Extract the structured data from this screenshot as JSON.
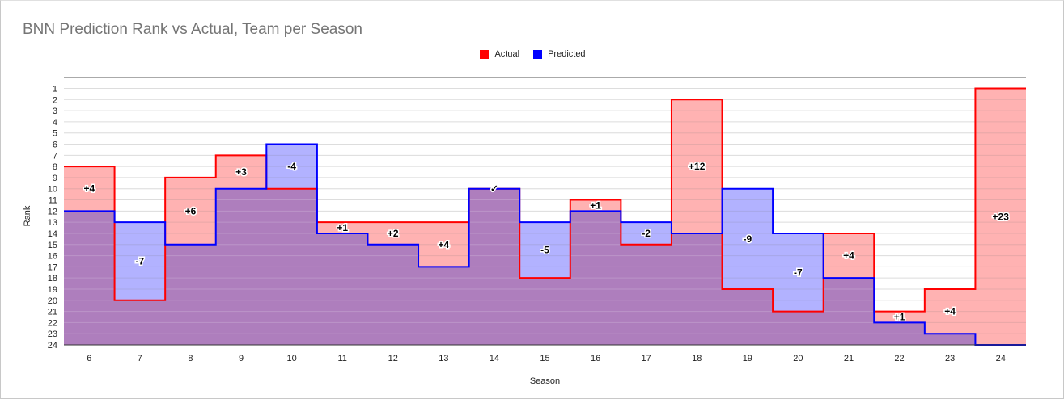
{
  "chart_data": {
    "type": "area",
    "title": "BNN Prediction Rank vs Actual, Team per Season",
    "xlabel": "Season",
    "ylabel": "Rank",
    "x": [
      "6",
      "7",
      "8",
      "9",
      "10",
      "11",
      "12",
      "13",
      "14",
      "15",
      "16",
      "17",
      "18",
      "19",
      "20",
      "21",
      "22",
      "23",
      "24"
    ],
    "yticks": [
      "1",
      "2",
      "3",
      "4",
      "5",
      "6",
      "7",
      "8",
      "9",
      "10",
      "11",
      "12",
      "13",
      "14",
      "15",
      "16",
      "17",
      "18",
      "19",
      "20",
      "21",
      "22",
      "23",
      "24"
    ],
    "ylim": [
      1,
      24
    ],
    "y_reversed": true,
    "step": true,
    "grid": true,
    "legend_position": "top",
    "series": [
      {
        "name": "Actual",
        "color": "#ff0000",
        "fill": "#ffb3b3",
        "values": [
          8,
          20,
          9,
          7,
          10,
          13,
          13,
          13,
          10,
          18,
          11,
          15,
          2,
          19,
          21,
          14,
          21,
          19,
          1
        ]
      },
      {
        "name": "Predicted",
        "color": "#0000ff",
        "fill": "#b3b3ff",
        "values": [
          12,
          13,
          15,
          10,
          6,
          14,
          15,
          17,
          10,
          13,
          12,
          13,
          14,
          10,
          14,
          18,
          22,
          23,
          24
        ]
      }
    ],
    "annotations": [
      "+4",
      "-7",
      "+6",
      "+3",
      "-4",
      "+1",
      "+2",
      "+4",
      "✓",
      "-5",
      "+1",
      "-2",
      "+12",
      "-9",
      "-7",
      "+4",
      "+1",
      "+4",
      "+23"
    ],
    "overlap_color": "#ae7ebd"
  }
}
